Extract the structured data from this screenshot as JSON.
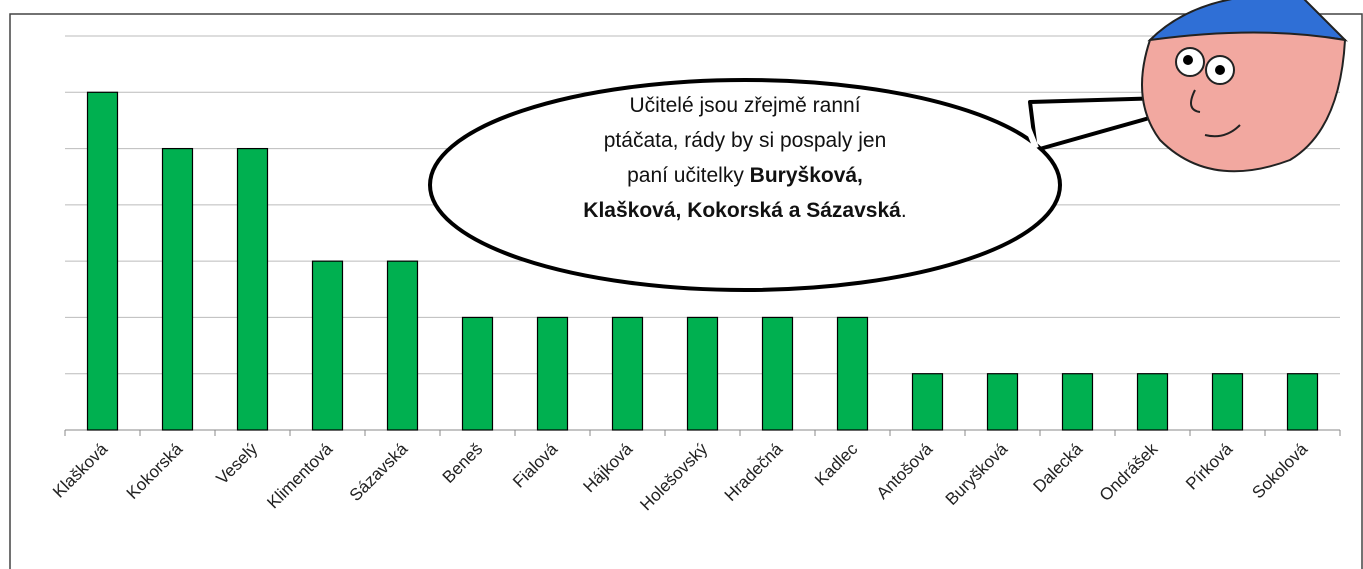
{
  "chart_data": {
    "type": "bar",
    "categories": [
      "Klašková",
      "Kokorská",
      "Veselý",
      "Klimentová",
      "Sázavská",
      "Beneš",
      "Fialová",
      "Hájková",
      "Holešovský",
      "Hradečná",
      "Kadlec",
      "Antošová",
      "Buryšková",
      "Dalecká",
      "Ondrášek",
      "Pírková",
      "Sokolová"
    ],
    "values": [
      6,
      5,
      5,
      3,
      3,
      2,
      2,
      2,
      2,
      2,
      2,
      1,
      1,
      1,
      1,
      1,
      1
    ],
    "color": "#00b050",
    "ylim": [
      0,
      7
    ],
    "yticks": [
      0,
      1,
      2,
      3,
      4,
      5,
      6,
      7
    ],
    "grid": true,
    "annotation": [
      [
        {
          "text": "Učitelé jsou zřejmě ranní"
        }
      ],
      [
        {
          "text": "ptáčata, rády by si pospaly jen"
        }
      ],
      [
        {
          "text": "paní učitelky "
        },
        {
          "text": "Buryšková,",
          "bold": true
        }
      ],
      [
        {
          "text": "Klašková, Kokorská a Sázavská",
          "bold": true
        },
        {
          "text": "."
        }
      ]
    ]
  }
}
